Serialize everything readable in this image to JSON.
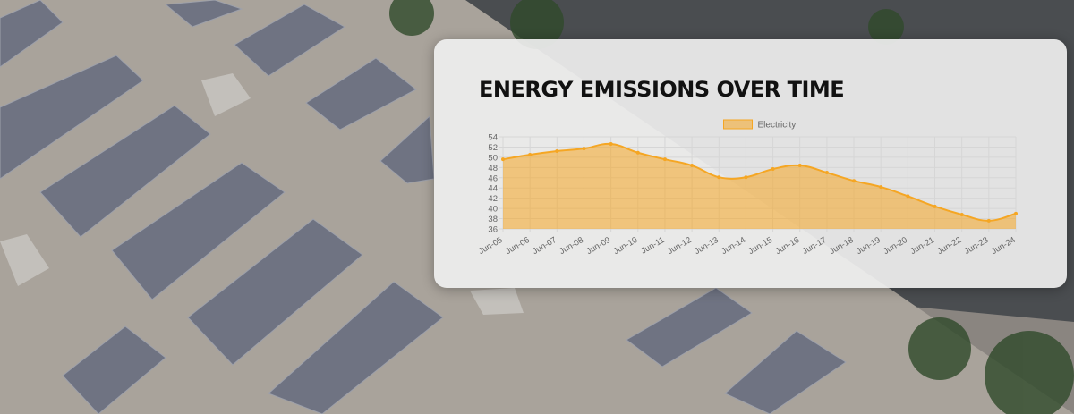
{
  "chart_data": {
    "type": "area",
    "title": "ENERGY EMISSIONS OVER TIME",
    "categories": [
      "Jun-05",
      "Jun-06",
      "Jun-07",
      "Jun-08",
      "Jun-09",
      "Jun-10",
      "Jun-11",
      "Jun-12",
      "Jun-13",
      "Jun-14",
      "Jun-15",
      "Jun-16",
      "Jun-17",
      "Jun-18",
      "Jun-19",
      "Jun-20",
      "Jun-21",
      "Jun-22",
      "Jun-23",
      "Jun-24"
    ],
    "series": [
      {
        "name": "Electricity",
        "color": "#f5a623",
        "values": [
          49.6,
          50.5,
          51.2,
          51.7,
          52.6,
          50.9,
          49.6,
          48.4,
          46.1,
          46.1,
          47.7,
          48.4,
          47.0,
          45.4,
          44.2,
          42.4,
          40.4,
          38.8,
          37.6,
          39.0
        ]
      }
    ],
    "ylim": [
      36,
      54
    ],
    "yticks": [
      36,
      38,
      40,
      42,
      44,
      46,
      48,
      50,
      52,
      54
    ],
    "grid": true,
    "legend": "top"
  }
}
